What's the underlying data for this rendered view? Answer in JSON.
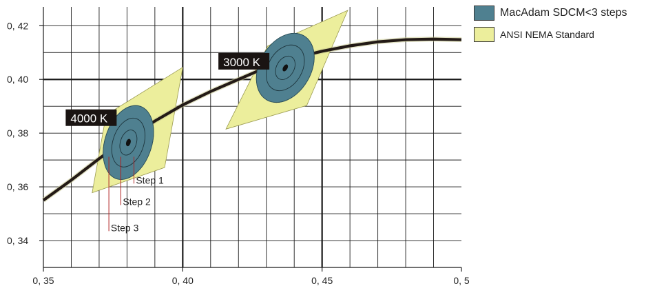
{
  "chart_data": {
    "type": "scatter",
    "xlim": [
      0.35,
      0.5
    ],
    "ylim": [
      0.33,
      0.427
    ],
    "x_ticks": [
      {
        "value": 0.35,
        "label": "0, 35"
      },
      {
        "value": 0.4,
        "label": "0, 40"
      },
      {
        "value": 0.45,
        "label": "0, 45"
      },
      {
        "value": 0.5,
        "label": "0, 5"
      }
    ],
    "y_ticks": [
      {
        "value": 0.42,
        "label": "0, 42"
      },
      {
        "value": 0.4,
        "label": "0, 40"
      },
      {
        "value": 0.38,
        "label": "0, 38"
      },
      {
        "value": 0.36,
        "label": "0, 36"
      },
      {
        "value": 0.34,
        "label": "0, 34"
      }
    ],
    "grid": true,
    "minor_step": 0.01,
    "planckian_locus": [
      [
        0.35,
        0.355
      ],
      [
        0.36,
        0.3625
      ],
      [
        0.37,
        0.3705
      ],
      [
        0.38,
        0.378
      ],
      [
        0.39,
        0.3845
      ],
      [
        0.4,
        0.3905
      ],
      [
        0.41,
        0.3955
      ],
      [
        0.42,
        0.4
      ],
      [
        0.43,
        0.4045
      ],
      [
        0.44,
        0.408
      ],
      [
        0.45,
        0.4105
      ],
      [
        0.46,
        0.4125
      ],
      [
        0.47,
        0.414
      ],
      [
        0.48,
        0.4148
      ],
      [
        0.49,
        0.415
      ],
      [
        0.5,
        0.4148
      ]
    ],
    "regions": [
      {
        "label": "4000  K",
        "label_at": [
          0.358,
          0.3855
        ],
        "center": [
          0.3805,
          0.3765
        ],
        "ansi_quad": [
          [
            0.3675,
            0.3578
          ],
          [
            0.3725,
            0.3868
          ],
          [
            0.4,
            0.4045
          ],
          [
            0.3935,
            0.3672
          ]
        ],
        "ellipse": {
          "rx": 0.0084,
          "ry": 0.0142,
          "rot_deg": 18
        },
        "steps": [
          1,
          2,
          3
        ]
      },
      {
        "label": "3000  K",
        "label_at": [
          0.4128,
          0.4065
        ],
        "center": [
          0.4368,
          0.4043
        ],
        "ansi_quad": [
          [
            0.4155,
            0.3815
          ],
          [
            0.4305,
            0.4125
          ],
          [
            0.4592,
            0.4257
          ],
          [
            0.4445,
            0.3903
          ]
        ],
        "ellipse": {
          "rx": 0.0092,
          "ry": 0.0138,
          "rot_deg": 30
        },
        "steps": [
          1,
          2,
          3
        ]
      }
    ],
    "step_labels": [
      {
        "text": "Step 1",
        "point": [
          0.3825,
          0.3712
        ],
        "at": [
          0.3832,
          0.3625
        ]
      },
      {
        "text": "Step 2",
        "point": [
          0.3778,
          0.3712
        ],
        "at": [
          0.3785,
          0.3545
        ]
      },
      {
        "text": "Step 3",
        "point": [
          0.3735,
          0.3712
        ],
        "at": [
          0.3742,
          0.3448
        ]
      }
    ],
    "legend": [
      {
        "label": "MacAdam SDCM<3 steps",
        "color": "#4f8090"
      },
      {
        "label": "ANSI NEMA Standard",
        "color": "#ecee9c"
      }
    ]
  },
  "colors": {
    "ansi": "#ecee9c",
    "ansi_stroke": "#9a9a50",
    "macadam": "#4f8090",
    "locus": "#231a16",
    "locus_band": "#c8c890",
    "grid": "#1a1a1a",
    "leader": "#b02020"
  }
}
